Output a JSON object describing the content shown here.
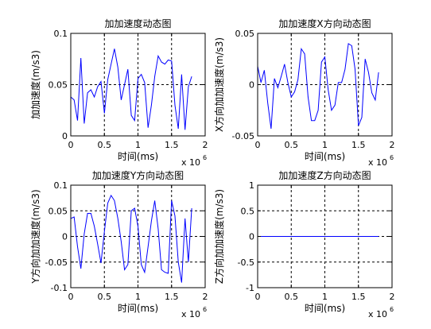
{
  "chart_data": [
    {
      "type": "line",
      "title": "加加速度动态图",
      "xlabel": "时间(ms)",
      "ylabel": "加加速度(m/s3)",
      "x_multiplier": "x 10",
      "x_multiplier_exp": "6",
      "xlim": [
        0,
        2
      ],
      "ylim": [
        0,
        0.1
      ],
      "xticks": [
        0,
        0.5,
        1,
        1.5,
        2
      ],
      "xtick_labels": [
        "0",
        "0.5",
        "1",
        "1.5",
        "2"
      ],
      "yticks": [
        0,
        0.05,
        0.1
      ],
      "ytick_labels": [
        "0",
        "0.05",
        "0.1"
      ],
      "grid": true,
      "line_color": "#0000ff",
      "series": [
        {
          "x": [
            0,
            0.05,
            0.1,
            0.15,
            0.2,
            0.25,
            0.3,
            0.35,
            0.4,
            0.45,
            0.5,
            0.55,
            0.6,
            0.65,
            0.7,
            0.75,
            0.8,
            0.85,
            0.9,
            0.95,
            1.0,
            1.05,
            1.1,
            1.15,
            1.2,
            1.25,
            1.3,
            1.35,
            1.4,
            1.45,
            1.5,
            1.55,
            1.6,
            1.65,
            1.7,
            1.75,
            1.8
          ],
          "y": [
            0.038,
            0.035,
            0.015,
            0.076,
            0.012,
            0.042,
            0.045,
            0.038,
            0.048,
            0.053,
            0.022,
            0.055,
            0.07,
            0.085,
            0.067,
            0.035,
            0.05,
            0.065,
            0.02,
            0.015,
            0.056,
            0.06,
            0.052,
            0.008,
            0.03,
            0.058,
            0.078,
            0.072,
            0.07,
            0.074,
            0.073,
            0.03,
            0.007,
            0.06,
            0.006,
            0.048,
            0.058
          ]
        }
      ]
    },
    {
      "type": "line",
      "title": "加加速度X方向动态图",
      "xlabel": "时间(ms)",
      "ylabel": "X方向加加速度(m/s3)",
      "x_multiplier": "x 10",
      "x_multiplier_exp": "6",
      "xlim": [
        0,
        2
      ],
      "ylim": [
        -0.05,
        0.05
      ],
      "xticks": [
        0,
        0.5,
        1,
        1.5,
        2
      ],
      "xtick_labels": [
        "0",
        "0.5",
        "1",
        "1.5",
        "2"
      ],
      "yticks": [
        -0.05,
        0,
        0.05
      ],
      "ytick_labels": [
        "-0.05",
        "0",
        "0.05"
      ],
      "grid": true,
      "line_color": "#0000ff",
      "series": [
        {
          "x": [
            0,
            0.05,
            0.1,
            0.15,
            0.2,
            0.25,
            0.3,
            0.35,
            0.4,
            0.45,
            0.5,
            0.55,
            0.6,
            0.65,
            0.7,
            0.75,
            0.8,
            0.85,
            0.9,
            0.95,
            1.0,
            1.05,
            1.1,
            1.15,
            1.2,
            1.25,
            1.3,
            1.35,
            1.4,
            1.45,
            1.5,
            1.55,
            1.6,
            1.65,
            1.7,
            1.75,
            1.8
          ],
          "y": [
            0.018,
            0.002,
            0.014,
            -0.018,
            -0.043,
            0.006,
            -0.003,
            0.008,
            0.02,
            0.002,
            -0.012,
            -0.007,
            0.005,
            0.035,
            0.03,
            -0.012,
            -0.035,
            -0.035,
            -0.025,
            0.022,
            0.027,
            -0.005,
            -0.025,
            -0.02,
            0.002,
            0.002,
            0.015,
            0.04,
            0.038,
            0.015,
            -0.04,
            -0.032,
            0.025,
            0.012,
            -0.008,
            -0.015,
            0.012
          ]
        }
      ]
    },
    {
      "type": "line",
      "title": "加加速度Y方向动态图",
      "xlabel": "时间(ms)",
      "ylabel": "Y方向加加速度(m/s3)",
      "x_multiplier": "x 10",
      "x_multiplier_exp": "6",
      "xlim": [
        0,
        2
      ],
      "ylim": [
        -0.1,
        0.1
      ],
      "xticks": [
        0,
        0.5,
        1,
        1.5,
        2
      ],
      "xtick_labels": [
        "0",
        "0.5",
        "1",
        "1.5",
        "2"
      ],
      "yticks": [
        -0.1,
        -0.05,
        0,
        0.05,
        0.1
      ],
      "ytick_labels": [
        "-0.1",
        "-0.05",
        "0",
        "0.05",
        "0.1"
      ],
      "grid": true,
      "line_color": "#0000ff",
      "series": [
        {
          "x": [
            0,
            0.05,
            0.1,
            0.15,
            0.2,
            0.25,
            0.3,
            0.35,
            0.4,
            0.45,
            0.5,
            0.55,
            0.6,
            0.65,
            0.7,
            0.75,
            0.8,
            0.85,
            0.9,
            0.95,
            1.0,
            1.05,
            1.1,
            1.15,
            1.2,
            1.25,
            1.3,
            1.35,
            1.4,
            1.45,
            1.5,
            1.55,
            1.6,
            1.65,
            1.7,
            1.75,
            1.8
          ],
          "y": [
            0.035,
            0.038,
            -0.02,
            -0.063,
            0.005,
            0.045,
            0.045,
            0.02,
            -0.015,
            -0.052,
            0.01,
            0.065,
            0.08,
            0.07,
            0.035,
            -0.01,
            -0.065,
            -0.055,
            0.05,
            0.055,
            0.02,
            -0.055,
            -0.07,
            -0.02,
            0.03,
            0.07,
            0.015,
            -0.065,
            -0.07,
            -0.072,
            0.07,
            0.04,
            -0.05,
            -0.09,
            0.035,
            -0.05,
            0.055
          ]
        }
      ]
    },
    {
      "type": "line",
      "title": "加加速度Z方向动态图",
      "xlabel": "时间(ms)",
      "ylabel": "Z方向加加速度(m/s3)",
      "x_multiplier": "x 10",
      "x_multiplier_exp": "6",
      "xlim": [
        0,
        2
      ],
      "ylim": [
        -1,
        1
      ],
      "xticks": [
        0,
        0.5,
        1,
        1.5,
        2
      ],
      "xtick_labels": [
        "0",
        "0.5",
        "1",
        "1.5",
        "2"
      ],
      "yticks": [
        -1,
        -0.5,
        0,
        0.5,
        1
      ],
      "ytick_labels": [
        "-1",
        "-0.5",
        "0",
        "0.5",
        "1"
      ],
      "grid": true,
      "line_color": "#0000ff",
      "series": [
        {
          "x": [
            0,
            1.8
          ],
          "y": [
            0,
            0
          ]
        }
      ]
    }
  ]
}
